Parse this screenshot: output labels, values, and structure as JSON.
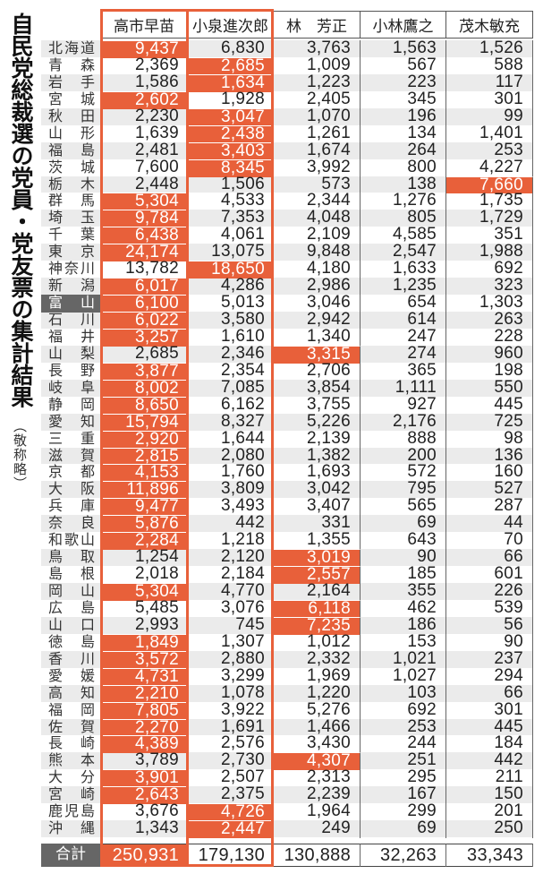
{
  "title": "自民党総裁選の党員・党友票の集計結果",
  "subtitle": "（敬称略）",
  "colors": {
    "highlight": "#e8603a",
    "row_stripe": "#ebebeb",
    "label_dark": "#666666"
  },
  "candidates": [
    "高市早苗",
    "小泉進次郎",
    "林　芳正",
    "小林鷹之",
    "茂木敏充"
  ],
  "rows": [
    {
      "pref": "北海道",
      "votes": [
        "9,437",
        "6,830",
        "3,763",
        "1,563",
        "1,526"
      ],
      "top": 0
    },
    {
      "pref": "青森",
      "votes": [
        "2,369",
        "2,685",
        "1,009",
        "567",
        "588"
      ],
      "top": 1
    },
    {
      "pref": "岩手",
      "votes": [
        "1,586",
        "1,634",
        "1,223",
        "223",
        "117"
      ],
      "top": 1
    },
    {
      "pref": "宮城",
      "votes": [
        "2,602",
        "1,928",
        "2,405",
        "345",
        "301"
      ],
      "top": 0
    },
    {
      "pref": "秋田",
      "votes": [
        "2,230",
        "3,047",
        "1,070",
        "196",
        "99"
      ],
      "top": 1
    },
    {
      "pref": "山形",
      "votes": [
        "1,639",
        "2,438",
        "1,261",
        "134",
        "1,401"
      ],
      "top": 1
    },
    {
      "pref": "福島",
      "votes": [
        "2,481",
        "3,403",
        "1,674",
        "264",
        "253"
      ],
      "top": 1
    },
    {
      "pref": "茨城",
      "votes": [
        "7,600",
        "8,345",
        "3,992",
        "800",
        "4,227"
      ],
      "top": 1
    },
    {
      "pref": "栃木",
      "votes": [
        "2,448",
        "1,506",
        "573",
        "138",
        "7,660"
      ],
      "top": 4
    },
    {
      "pref": "群馬",
      "votes": [
        "5,304",
        "4,533",
        "2,344",
        "1,276",
        "1,735"
      ],
      "top": 0
    },
    {
      "pref": "埼玉",
      "votes": [
        "9,784",
        "7,353",
        "4,048",
        "805",
        "1,729"
      ],
      "top": 0
    },
    {
      "pref": "千葉",
      "votes": [
        "6,438",
        "4,061",
        "2,109",
        "4,585",
        "351"
      ],
      "top": 0
    },
    {
      "pref": "東京",
      "votes": [
        "24,174",
        "13,075",
        "9,848",
        "2,547",
        "1,988"
      ],
      "top": 0
    },
    {
      "pref": "神奈川",
      "votes": [
        "13,782",
        "18,650",
        "4,180",
        "1,633",
        "692"
      ],
      "top": 1
    },
    {
      "pref": "新潟",
      "votes": [
        "6,017",
        "4,286",
        "2,986",
        "1,235",
        "323"
      ],
      "top": 0
    },
    {
      "pref": "富山",
      "votes": [
        "6,100",
        "5,013",
        "3,046",
        "654",
        "1,303"
      ],
      "top": 0,
      "emphasized": true
    },
    {
      "pref": "石川",
      "votes": [
        "6,022",
        "3,580",
        "2,942",
        "614",
        "263"
      ],
      "top": 0
    },
    {
      "pref": "福井",
      "votes": [
        "3,257",
        "1,610",
        "1,340",
        "247",
        "228"
      ],
      "top": 0
    },
    {
      "pref": "山梨",
      "votes": [
        "2,685",
        "2,346",
        "3,315",
        "274",
        "960"
      ],
      "top": 2
    },
    {
      "pref": "長野",
      "votes": [
        "3,877",
        "2,354",
        "2,706",
        "365",
        "198"
      ],
      "top": 0
    },
    {
      "pref": "岐阜",
      "votes": [
        "8,002",
        "7,085",
        "3,854",
        "1,111",
        "550"
      ],
      "top": 0
    },
    {
      "pref": "静岡",
      "votes": [
        "8,650",
        "6,162",
        "3,755",
        "927",
        "445"
      ],
      "top": 0
    },
    {
      "pref": "愛知",
      "votes": [
        "15,794",
        "8,327",
        "5,226",
        "2,176",
        "725"
      ],
      "top": 0
    },
    {
      "pref": "三重",
      "votes": [
        "2,920",
        "1,644",
        "2,139",
        "888",
        "98"
      ],
      "top": 0
    },
    {
      "pref": "滋賀",
      "votes": [
        "2,815",
        "2,080",
        "1,382",
        "200",
        "136"
      ],
      "top": 0
    },
    {
      "pref": "京都",
      "votes": [
        "4,153",
        "1,760",
        "1,693",
        "572",
        "160"
      ],
      "top": 0
    },
    {
      "pref": "大阪",
      "votes": [
        "11,896",
        "3,809",
        "3,042",
        "795",
        "527"
      ],
      "top": 0
    },
    {
      "pref": "兵庫",
      "votes": [
        "9,477",
        "3,493",
        "3,407",
        "565",
        "287"
      ],
      "top": 0
    },
    {
      "pref": "奈良",
      "votes": [
        "5,876",
        "442",
        "331",
        "69",
        "44"
      ],
      "top": 0
    },
    {
      "pref": "和歌山",
      "votes": [
        "2,284",
        "1,218",
        "1,355",
        "643",
        "70"
      ],
      "top": 0
    },
    {
      "pref": "鳥取",
      "votes": [
        "1,254",
        "2,120",
        "3,019",
        "90",
        "66"
      ],
      "top": 2
    },
    {
      "pref": "島根",
      "votes": [
        "2,018",
        "2,184",
        "2,557",
        "185",
        "601"
      ],
      "top": 2
    },
    {
      "pref": "岡山",
      "votes": [
        "5,304",
        "4,770",
        "2,164",
        "355",
        "226"
      ],
      "top": 0
    },
    {
      "pref": "広島",
      "votes": [
        "5,485",
        "3,076",
        "6,118",
        "462",
        "539"
      ],
      "top": 2
    },
    {
      "pref": "山口",
      "votes": [
        "2,993",
        "745",
        "7,235",
        "186",
        "56"
      ],
      "top": 2
    },
    {
      "pref": "徳島",
      "votes": [
        "1,849",
        "1,307",
        "1,012",
        "153",
        "90"
      ],
      "top": 0
    },
    {
      "pref": "香川",
      "votes": [
        "3,572",
        "2,880",
        "2,332",
        "1,021",
        "237"
      ],
      "top": 0
    },
    {
      "pref": "愛媛",
      "votes": [
        "4,731",
        "3,299",
        "1,969",
        "1,027",
        "294"
      ],
      "top": 0
    },
    {
      "pref": "高知",
      "votes": [
        "2,210",
        "1,078",
        "1,220",
        "103",
        "66"
      ],
      "top": 0
    },
    {
      "pref": "福岡",
      "votes": [
        "7,805",
        "3,922",
        "5,276",
        "692",
        "301"
      ],
      "top": 0
    },
    {
      "pref": "佐賀",
      "votes": [
        "2,270",
        "1,691",
        "1,466",
        "253",
        "445"
      ],
      "top": 0
    },
    {
      "pref": "長崎",
      "votes": [
        "4,389",
        "2,576",
        "3,430",
        "244",
        "184"
      ],
      "top": 0
    },
    {
      "pref": "熊本",
      "votes": [
        "3,789",
        "2,730",
        "4,307",
        "251",
        "442"
      ],
      "top": 2
    },
    {
      "pref": "大分",
      "votes": [
        "3,901",
        "2,507",
        "2,313",
        "295",
        "211"
      ],
      "top": 0
    },
    {
      "pref": "宮崎",
      "votes": [
        "2,643",
        "2,375",
        "2,239",
        "167",
        "150"
      ],
      "top": 0
    },
    {
      "pref": "鹿児島",
      "votes": [
        "3,676",
        "4,726",
        "1,964",
        "299",
        "201"
      ],
      "top": 1
    },
    {
      "pref": "沖縄",
      "votes": [
        "1,343",
        "2,447",
        "249",
        "69",
        "250"
      ],
      "top": 1
    }
  ],
  "total": {
    "label": "合計",
    "votes": [
      "250,931",
      "179,130",
      "130,888",
      "32,263",
      "33,343"
    ],
    "top": 0
  }
}
